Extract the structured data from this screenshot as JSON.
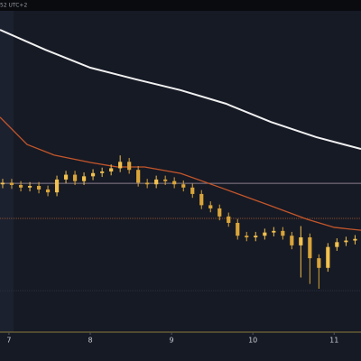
{
  "chart_data": {
    "type": "candlestick",
    "subtitle": "52 UTC+2",
    "xlim": [
      6.89,
      11.33
    ],
    "xticks": [
      7,
      8,
      9,
      10,
      11
    ],
    "ylim": [
      0,
      100
    ],
    "up_color": "#f2c14e",
    "down_color": "#d9a53a",
    "candles": {
      "x": [
        6.923,
        7.034,
        7.146,
        7.257,
        7.368,
        7.479,
        7.59,
        7.701,
        7.812,
        7.923,
        8.034,
        8.146,
        8.257,
        8.368,
        8.479,
        8.59,
        8.701,
        8.812,
        8.923,
        9.034,
        9.146,
        9.257,
        9.368,
        9.479,
        9.59,
        9.701,
        9.812,
        9.923,
        10.034,
        10.146,
        10.257,
        10.368,
        10.479,
        10.59,
        10.701,
        10.812,
        10.923,
        11.034,
        11.146,
        11.257
      ],
      "open": [
        46,
        46.5,
        45.8,
        45,
        45.5,
        44.4,
        43.5,
        47.5,
        49,
        47,
        48.5,
        49.5,
        50,
        51,
        53,
        50.5,
        46.5,
        46,
        47.5,
        47,
        46,
        45,
        43,
        39.5,
        38.5,
        36,
        34,
        30,
        29.5,
        30,
        31,
        31.5,
        30,
        27,
        29.5,
        23,
        20,
        26.5,
        28,
        28.5
      ],
      "high": [
        47.7,
        47.7,
        47,
        46.7,
        46.7,
        45.6,
        48.7,
        50.2,
        50.2,
        49.7,
        50.7,
        51.2,
        52.2,
        55,
        54.2,
        51.7,
        47.7,
        48.7,
        48.7,
        48.2,
        47.2,
        46.2,
        44.2,
        40.7,
        39.7,
        37.2,
        35.2,
        31.2,
        31.2,
        32.2,
        32.7,
        32.7,
        31.2,
        33,
        30.7,
        24.2,
        27.7,
        29.2,
        29.7,
        30.2
      ],
      "low": [
        44.8,
        44.6,
        43.8,
        43.8,
        43.2,
        42.3,
        42.3,
        46.3,
        45.8,
        45.8,
        47.3,
        48.3,
        48.8,
        49.8,
        49.3,
        45.3,
        44.8,
        44.8,
        45.8,
        44.8,
        43.8,
        41.8,
        38.3,
        37.3,
        34.8,
        32.8,
        28.8,
        28.3,
        28.3,
        28.8,
        29.8,
        28.8,
        25.8,
        17,
        15,
        13.5,
        18.8,
        25.3,
        26.8,
        27.3
      ],
      "close": [
        46.5,
        45.8,
        45,
        45.5,
        44.4,
        43.5,
        47.5,
        49,
        47,
        48.5,
        49.5,
        50,
        51,
        53,
        50.5,
        46.5,
        46,
        47.5,
        47,
        46,
        45,
        43,
        39.5,
        38.5,
        36,
        34,
        30,
        29.5,
        30,
        31,
        31.5,
        30,
        27,
        29.5,
        23,
        20,
        26.5,
        28,
        28.5,
        29
      ]
    },
    "lines": [
      {
        "color": "#f0f0f0",
        "x": [
          6.89,
          7.446,
          8.001,
          8.557,
          9.112,
          9.668,
          10.223,
          10.779,
          11.33
        ],
        "values": [
          94.1,
          87.9,
          82.3,
          78.7,
          75.3,
          71.1,
          65.4,
          60.7,
          57.0
        ]
      },
      {
        "color": "#c4562a",
        "x": [
          6.89,
          7.223,
          7.557,
          8.001,
          8.334,
          8.668,
          9.112,
          9.668,
          10.223,
          10.668,
          11.001,
          11.33
        ],
        "values": [
          66.9,
          58.4,
          55.1,
          52.8,
          51.4,
          51.4,
          49.4,
          44.4,
          39.3,
          35.1,
          32.6,
          31.7
        ]
      }
    ],
    "levels": [
      {
        "value": 46.3,
        "color": "#8a7d8c"
      },
      {
        "value": 35.4,
        "color": "#8a4a2a"
      },
      {
        "value": 12.9,
        "color": "#2a2f3d"
      }
    ]
  }
}
